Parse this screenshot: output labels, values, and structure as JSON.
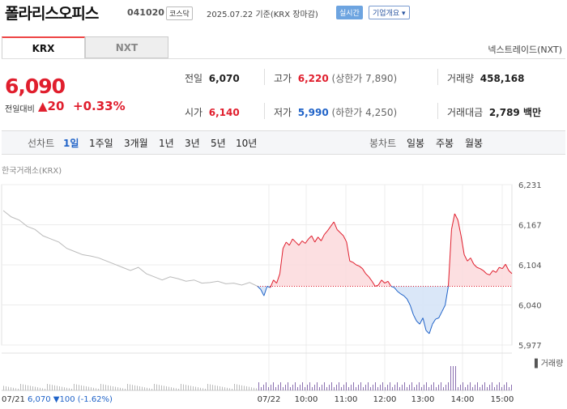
{
  "header": {
    "name": "폴라리스오피스",
    "code": "041020",
    "market": "코스닥",
    "date": "2025.07.22",
    "basis": "기준(KRX 장마감)",
    "realtime": "실시간",
    "company_info": "기업개요"
  },
  "tabs": [
    "KRX",
    "NXT"
  ],
  "nxt_link": "넥스트레이드(NXT)",
  "price": {
    "current": "6,090",
    "change_label": "전일대비",
    "change_value": "▲20",
    "change_pct": "+0.33%"
  },
  "stats": {
    "prev_close": {
      "label": "전일",
      "value": "6,070"
    },
    "open": {
      "label": "시가",
      "value": "6,140"
    },
    "high": {
      "label": "고가",
      "value": "6,220",
      "note": "(상한가 7,890)"
    },
    "low": {
      "label": "저가",
      "value": "5,990",
      "note": "(하한가 4,250)"
    },
    "volume": {
      "label": "거래량",
      "value": "458,168"
    },
    "amount": {
      "label": "거래대금",
      "value": "2,789 백만"
    }
  },
  "chart_controls": {
    "line_label": "선차트",
    "line_periods": [
      "1일",
      "1주일",
      "3개월",
      "1년",
      "3년",
      "5년",
      "10년"
    ],
    "selected": "1일",
    "candle_label": "봉차트",
    "candle_periods": [
      "일봉",
      "주봉",
      "월봉"
    ]
  },
  "chart_caption": "한국거래소(KRX)",
  "colors": {
    "up": "#e01e2d",
    "down": "#2063c8",
    "prev": "#bbbbbb"
  },
  "chart_data": {
    "type": "line",
    "title": "",
    "baseline": 6070,
    "ylim": [
      5977,
      6231
    ],
    "y_ticks": [
      "6,231",
      "6,167",
      "6,104",
      "6,040",
      "5,977"
    ],
    "x_ticks": [
      "07/22",
      "10:00",
      "11:00",
      "12:00",
      "13:00",
      "14:00",
      "15:00"
    ],
    "prev_day_label": "07/21",
    "prev_day_summary": {
      "close": "6,070",
      "change": "▼100",
      "pct": "(-1.62%)"
    },
    "volume_label": "거래량",
    "series": [
      {
        "session": "07/21",
        "values": [
          6190,
          6180,
          6175,
          6165,
          6160,
          6150,
          6145,
          6140,
          6130,
          6125,
          6120,
          6118,
          6115,
          6110,
          6105,
          6100,
          6095,
          6100,
          6090,
          6085,
          6080,
          6085,
          6082,
          6078,
          6080,
          6075,
          6076,
          6078,
          6074,
          6075,
          6072,
          6076,
          6070
        ]
      },
      {
        "session": "07/22 09:00-15:30",
        "values": [
          6070,
          6065,
          6055,
          6070,
          6068,
          6080,
          6075,
          6090,
          6130,
          6140,
          6135,
          6145,
          6140,
          6135,
          6142,
          6138,
          6145,
          6150,
          6140,
          6148,
          6142,
          6152,
          6158,
          6165,
          6172,
          6160,
          6155,
          6150,
          6140,
          6110,
          6108,
          6104,
          6102,
          6098,
          6090,
          6085,
          6078,
          6070,
          6072,
          6080,
          6075,
          6078,
          6070,
          6068,
          6062,
          6058,
          6055,
          6050,
          6040,
          6025,
          6015,
          6010,
          6020,
          6000,
          5995,
          6010,
          6018,
          6020,
          6030,
          6040,
          6070,
          6160,
          6185,
          6175,
          6150,
          6120,
          6110,
          6115,
          6105,
          6100,
          6098,
          6095,
          6090,
          6088,
          6095,
          6092,
          6100,
          6098,
          6105,
          6095,
          6090
        ]
      }
    ]
  }
}
